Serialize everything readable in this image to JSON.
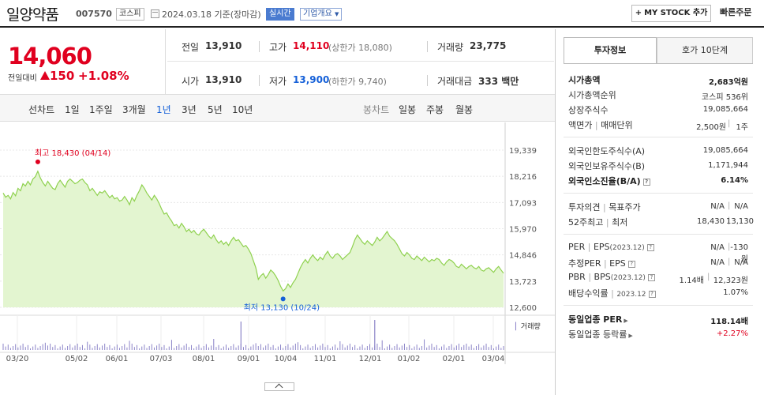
{
  "header": {
    "name": "일양약품",
    "code": "007570",
    "market": "코스피",
    "date": "2024.03.18  기준(장마감)",
    "realtime": "실시간",
    "company_info": "기업개요",
    "mystock_label": "MY STOCK 추가",
    "quick_order": "빠른주문"
  },
  "price": {
    "current": "14,060",
    "change_label": "전일대비",
    "change_value": "150",
    "change_pct": "+1.08%"
  },
  "summary": {
    "prev_close_label": "전일",
    "prev_close": "13,910",
    "high_label": "고가",
    "high": "14,110",
    "upper_limit": "(상한가 18,080)",
    "volume_label": "거래량",
    "volume": "23,775",
    "open_label": "시가",
    "open": "13,910",
    "low_label": "저가",
    "low": "13,900",
    "lower_limit": "(하한가 9,740)",
    "amount_label": "거래대금",
    "amount": "333",
    "amount_unit": "백만"
  },
  "period_bar": {
    "line_chart_label": "선차트",
    "periods": [
      "1일",
      "1주일",
      "3개월",
      "1년",
      "3년",
      "5년",
      "10년"
    ],
    "active_period": "1년",
    "candle_label": "봉차트",
    "candle_periods": [
      "일봉",
      "주봉",
      "월봉"
    ]
  },
  "chart_data": {
    "type": "area",
    "y_ticks": [
      "19,339",
      "18,216",
      "17,093",
      "15,970",
      "14,846",
      "13,723",
      "12,600"
    ],
    "ylim": [
      12600,
      19339
    ],
    "x_ticks": [
      "03/20",
      "05/02",
      "06/01",
      "07/03",
      "08/01",
      "09/01",
      "10/04",
      "11/01",
      "12/01",
      "01/02",
      "02/01",
      "03/04"
    ],
    "high_label": "최고 18,430 (04/14)",
    "low_label": "최저 13,130 (10/24)",
    "volume_label": "거래량",
    "accent_color": "#8fd14f",
    "fill_color": "#e3f5d0",
    "high_color": "#e0001f",
    "low_color": "#1560d8",
    "values": [
      17500,
      17320,
      17400,
      17250,
      17520,
      17380,
      17700,
      17600,
      17900,
      17800,
      18000,
      17850,
      18100,
      18200,
      18430,
      18150,
      17950,
      17800,
      18000,
      17850,
      17700,
      17650,
      17900,
      18050,
      17900,
      17750,
      18000,
      18100,
      18000,
      17900,
      17950,
      18050,
      18100,
      17950,
      17850,
      17600,
      17700,
      17550,
      17400,
      17550,
      17500,
      17600,
      17450,
      17300,
      17400,
      17250,
      17300,
      17150,
      17200,
      17350,
      17200,
      17000,
      17300,
      17150,
      17400,
      17600,
      17850,
      17700,
      17500,
      17350,
      17200,
      17400,
      17250,
      17050,
      16800,
      16600,
      16650,
      16450,
      16300,
      16100,
      16150,
      16000,
      16200,
      16050,
      15850,
      15950,
      15800,
      15900,
      15750,
      15700,
      15850,
      15950,
      15800,
      15650,
      15550,
      15700,
      15500,
      15350,
      15450,
      15300,
      15400,
      15250,
      15450,
      15600,
      15450,
      15500,
      15350,
      15200,
      15250,
      15100,
      14900,
      14600,
      14300,
      13800,
      13950,
      14050,
      13850,
      14000,
      14200,
      14100,
      13950,
      13750,
      13500,
      13300,
      13400,
      13600,
      13450,
      13650,
      13800,
      14050,
      14300,
      14500,
      14650,
      14500,
      14700,
      14850,
      14700,
      14600,
      14750,
      14650,
      14850,
      15000,
      14800,
      14700,
      14850,
      14900,
      14800,
      14650,
      14750,
      14850,
      14950,
      15200,
      15500,
      15700,
      15550,
      15400,
      15300,
      15450,
      15350,
      15250,
      15400,
      15600,
      15450,
      15550,
      15700,
      15850,
      15650,
      15550,
      15450,
      15300,
      15100,
      14900,
      14800,
      14950,
      14850,
      14700,
      14650,
      14800,
      14700,
      14600,
      14750,
      14650,
      14550,
      14650,
      14600,
      14700,
      14650,
      14500,
      14400,
      14550,
      14650,
      14600,
      14500,
      14350,
      14300,
      14450,
      14350,
      14250,
      14350,
      14400,
      14300,
      14250,
      14350,
      14200,
      14150,
      14250,
      14300,
      14200,
      14100,
      14250,
      14350,
      14200,
      14060
    ]
  },
  "right_panel": {
    "tab_invest": "투자정보",
    "tab_hoga": "호가 10단계",
    "rows": {
      "mcap_label": "시가총액",
      "mcap": "2,683억원",
      "mcap_rank_label": "시가총액순위",
      "mcap_rank": "코스피 536위",
      "shares_label": "상장주식수",
      "shares": "19,085,664",
      "par_label": "액면가",
      "trade_unit_label": "매매단위",
      "par": "2,500원",
      "trade_unit": "1주",
      "foreign_limit_label": "외국인한도주식수(A)",
      "foreign_limit": "19,085,664",
      "foreign_hold_label": "외국인보유주식수(B)",
      "foreign_hold": "1,171,944",
      "foreign_ratio_label": "외국인소진율(B/A)",
      "foreign_ratio": "6.14%",
      "opinion_label": "투자의견",
      "target_label": "목표주가",
      "opinion": "N/A",
      "target": "N/A",
      "w52_label": "52주최고",
      "w52_low_label": "최저",
      "w52_high": "18,430",
      "w52_low": "13,130",
      "per_label": "PER",
      "eps_label": "EPS",
      "eps_year": "(2023.12)",
      "per": "N/A",
      "eps": "-130원",
      "est_per_label": "추정PER",
      "est_eps_label": "EPS",
      "est_per": "N/A",
      "est_eps": "N/A",
      "pbr_label": "PBR",
      "bps_label": "BPS",
      "bps_year": "(2023.12)",
      "pbr": "1.14배",
      "bps": "12,323원",
      "div_label": "배당수익률",
      "div_year": "2023.12",
      "div": "1.07%",
      "ind_per_label": "동일업종 PER",
      "ind_per": "118.14배",
      "ind_rate_label": "동일업종 등락률",
      "ind_rate": "+2.27%"
    }
  }
}
